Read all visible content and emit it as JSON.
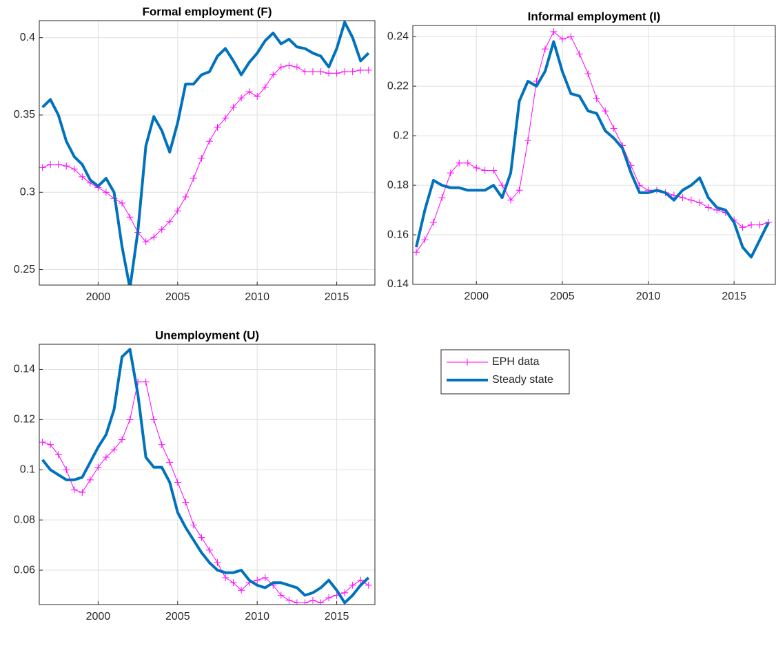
{
  "chart_data": [
    {
      "type": "line",
      "title": "Formal employment (F)",
      "grid": true,
      "x": [
        1996.5,
        1997,
        1997.5,
        1998,
        1998.5,
        1999,
        1999.5,
        2000,
        2000.5,
        2001,
        2001.5,
        2002,
        2002.5,
        2003,
        2003.5,
        2004,
        2004.5,
        2005,
        2005.5,
        2006,
        2006.5,
        2007,
        2007.5,
        2008,
        2008.5,
        2009,
        2009.5,
        2010,
        2010.5,
        2011,
        2011.5,
        2012,
        2012.5,
        2013,
        2013.5,
        2014,
        2014.5,
        2015,
        2015.5,
        2016,
        2016.5,
        2017
      ],
      "xlim": [
        1996.3,
        2017.4
      ],
      "xticks": [
        2000,
        2005,
        2010,
        2015
      ],
      "ylim": [
        0.24,
        0.411
      ],
      "yticks": [
        0.25,
        0.3,
        0.35,
        0.4
      ],
      "series": [
        {
          "name": "EPH data",
          "color": "#ff00ff",
          "marker": "+",
          "line_width": 1,
          "values": [
            0.316,
            0.318,
            0.318,
            0.317,
            0.315,
            0.31,
            0.306,
            0.303,
            0.3,
            0.296,
            0.293,
            0.284,
            0.274,
            0.268,
            0.271,
            0.276,
            0.281,
            0.288,
            0.297,
            0.309,
            0.322,
            0.333,
            0.342,
            0.348,
            0.355,
            0.361,
            0.365,
            0.362,
            0.368,
            0.376,
            0.381,
            0.382,
            0.381,
            0.378,
            0.378,
            0.378,
            0.377,
            0.377,
            0.378,
            0.378,
            0.379,
            0.379
          ]
        },
        {
          "name": "Steady state",
          "color": "#0072bd",
          "line_width": 4,
          "values": [
            0.355,
            0.36,
            0.35,
            0.333,
            0.323,
            0.318,
            0.308,
            0.304,
            0.309,
            0.3,
            0.265,
            0.238,
            0.275,
            0.33,
            0.349,
            0.34,
            0.326,
            0.345,
            0.37,
            0.37,
            0.376,
            0.378,
            0.388,
            0.393,
            0.385,
            0.376,
            0.384,
            0.39,
            0.398,
            0.403,
            0.396,
            0.399,
            0.394,
            0.393,
            0.39,
            0.388,
            0.381,
            0.393,
            0.41,
            0.4,
            0.385,
            0.39
          ]
        }
      ]
    },
    {
      "type": "line",
      "title": "Informal employment (I)",
      "grid": true,
      "x": [
        1996.5,
        1997,
        1997.5,
        1998,
        1998.5,
        1999,
        1999.5,
        2000,
        2000.5,
        2001,
        2001.5,
        2002,
        2002.5,
        2003,
        2003.5,
        2004,
        2004.5,
        2005,
        2005.5,
        2006,
        2006.5,
        2007,
        2007.5,
        2008,
        2008.5,
        2009,
        2009.5,
        2010,
        2010.5,
        2011,
        2011.5,
        2012,
        2012.5,
        2013,
        2013.5,
        2014,
        2014.5,
        2015,
        2015.5,
        2016,
        2016.5,
        2017
      ],
      "xlim": [
        1996.3,
        2017.4
      ],
      "xticks": [
        2000,
        2005,
        2010,
        2015
      ],
      "ylim": [
        0.14,
        0.2445
      ],
      "yticks": [
        0.14,
        0.16,
        0.18,
        0.2,
        0.22,
        0.24
      ],
      "series": [
        {
          "name": "EPH data",
          "color": "#ff00ff",
          "marker": "+",
          "line_width": 1,
          "values": [
            0.153,
            0.158,
            0.165,
            0.175,
            0.185,
            0.189,
            0.189,
            0.187,
            0.186,
            0.186,
            0.18,
            0.174,
            0.178,
            0.198,
            0.222,
            0.235,
            0.242,
            0.239,
            0.24,
            0.233,
            0.225,
            0.215,
            0.21,
            0.203,
            0.196,
            0.188,
            0.18,
            0.178,
            0.178,
            0.177,
            0.176,
            0.175,
            0.174,
            0.173,
            0.171,
            0.17,
            0.169,
            0.166,
            0.163,
            0.164,
            0.164,
            0.165
          ]
        },
        {
          "name": "Steady state",
          "color": "#0072bd",
          "line_width": 4,
          "values": [
            0.155,
            0.17,
            0.182,
            0.18,
            0.179,
            0.179,
            0.178,
            0.178,
            0.178,
            0.18,
            0.175,
            0.185,
            0.214,
            0.222,
            0.22,
            0.226,
            0.238,
            0.226,
            0.217,
            0.216,
            0.21,
            0.209,
            0.202,
            0.199,
            0.195,
            0.185,
            0.177,
            0.177,
            0.178,
            0.177,
            0.174,
            0.178,
            0.18,
            0.183,
            0.175,
            0.171,
            0.17,
            0.165,
            0.155,
            0.151,
            0.158,
            0.165
          ]
        }
      ]
    },
    {
      "type": "line",
      "title": "Unemployment (U)",
      "grid": true,
      "x": [
        1996.5,
        1997,
        1997.5,
        1998,
        1998.5,
        1999,
        1999.5,
        2000,
        2000.5,
        2001,
        2001.5,
        2002,
        2002.5,
        2003,
        2003.5,
        2004,
        2004.5,
        2005,
        2005.5,
        2006,
        2006.5,
        2007,
        2007.5,
        2008,
        2008.5,
        2009,
        2009.5,
        2010,
        2010.5,
        2011,
        2011.5,
        2012,
        2012.5,
        2013,
        2013.5,
        2014,
        2014.5,
        2015,
        2015.5,
        2016,
        2016.5,
        2017
      ],
      "xlim": [
        1996.3,
        2017.4
      ],
      "xticks": [
        2000,
        2005,
        2010,
        2015
      ],
      "ylim": [
        0.0463,
        0.15
      ],
      "yticks": [
        0.06,
        0.08,
        0.1,
        0.12,
        0.14
      ],
      "series": [
        {
          "name": "EPH data",
          "color": "#ff00ff",
          "marker": "+",
          "line_width": 1,
          "values": [
            0.111,
            0.11,
            0.106,
            0.1,
            0.092,
            0.091,
            0.096,
            0.101,
            0.105,
            0.108,
            0.112,
            0.12,
            0.135,
            0.135,
            0.12,
            0.11,
            0.103,
            0.095,
            0.087,
            0.078,
            0.073,
            0.068,
            0.063,
            0.057,
            0.055,
            0.052,
            0.055,
            0.056,
            0.057,
            0.054,
            0.05,
            0.048,
            0.047,
            0.047,
            0.048,
            0.047,
            0.049,
            0.05,
            0.051,
            0.054,
            0.056,
            0.054
          ]
        },
        {
          "name": "Steady state",
          "color": "#0072bd",
          "line_width": 4,
          "values": [
            0.104,
            0.1,
            0.098,
            0.096,
            0.096,
            0.097,
            0.103,
            0.109,
            0.114,
            0.124,
            0.145,
            0.148,
            0.13,
            0.105,
            0.101,
            0.101,
            0.095,
            0.083,
            0.077,
            0.072,
            0.067,
            0.063,
            0.06,
            0.059,
            0.059,
            0.06,
            0.056,
            0.054,
            0.053,
            0.055,
            0.055,
            0.054,
            0.053,
            0.05,
            0.051,
            0.053,
            0.056,
            0.052,
            0.047,
            0.05,
            0.054,
            0.057
          ]
        }
      ]
    }
  ]
}
